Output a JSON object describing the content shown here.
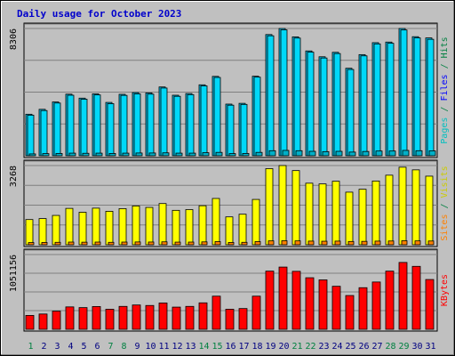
{
  "title": "Daily usage for October 2023",
  "colors": {
    "background": "#c0c0c0",
    "plot_background": "#c0c0c0",
    "title": "#0000cc",
    "grid": "#808080",
    "hits": "#00bfe8",
    "files": "#00d8f8",
    "pages": "#00b0c8",
    "visits": "#ffff00",
    "sites": "#ff8000",
    "kbytes": "#ff0000",
    "weekend_label": "#008040",
    "weekday_label": "#000080",
    "label_hits": "#008040",
    "label_files": "#0000ff",
    "label_pages": "#00bfbf",
    "label_visits": "#cccc00",
    "label_sites": "#ff8000",
    "label_kbytes": "#ff0000",
    "separator": "#000000"
  },
  "chart_data": [
    {
      "type": "bar",
      "title": "Daily usage for October 2023",
      "panel": "hits-files-pages",
      "ymax_label": "8306",
      "ylim": [
        0,
        8306
      ],
      "grid": true,
      "categories": [
        "1",
        "2",
        "3",
        "4",
        "5",
        "6",
        "7",
        "8",
        "9",
        "10",
        "11",
        "12",
        "13",
        "14",
        "15",
        "16",
        "17",
        "18",
        "19",
        "20",
        "21",
        "22",
        "23",
        "24",
        "25",
        "26",
        "27",
        "28",
        "29",
        "30",
        "31"
      ],
      "weekend_days": [
        "1",
        "7",
        "8",
        "14",
        "15",
        "21",
        "22",
        "28",
        "29"
      ],
      "side_label_parts": [
        {
          "text": "Pages",
          "color_key": "label_pages"
        },
        {
          "text": " / ",
          "color_key": "label_hits"
        },
        {
          "text": "Files",
          "color_key": "label_files"
        },
        {
          "text": " / ",
          "color_key": "label_hits"
        },
        {
          "text": "Hits",
          "color_key": "label_hits"
        }
      ],
      "series": [
        {
          "name": "Hits",
          "color_key": "hits",
          "values": [
            2710,
            3030,
            3510,
            4020,
            3760,
            4040,
            3480,
            4010,
            4120,
            4100,
            4490,
            3950,
            4060,
            4630,
            5180,
            3370,
            3420,
            5190,
            7910,
            8306,
            7760,
            6840,
            6460,
            6750,
            5710,
            6600,
            7380,
            7420,
            8306,
            7770,
            7690
          ]
        },
        {
          "name": "Files",
          "color_key": "files",
          "values": [
            2650,
            2950,
            3440,
            3950,
            3690,
            3970,
            3400,
            3940,
            4040,
            4020,
            4420,
            3880,
            3990,
            4560,
            5110,
            3300,
            3350,
            5130,
            7830,
            8220,
            7680,
            6760,
            6380,
            6670,
            5630,
            6520,
            7300,
            7340,
            8210,
            7690,
            7600
          ]
        },
        {
          "name": "Pages",
          "color_key": "pages",
          "values": [
            120,
            140,
            150,
            170,
            160,
            170,
            150,
            170,
            180,
            180,
            190,
            170,
            170,
            200,
            220,
            140,
            150,
            220,
            330,
            350,
            330,
            290,
            270,
            290,
            240,
            280,
            310,
            310,
            350,
            330,
            320
          ]
        }
      ]
    },
    {
      "type": "bar",
      "panel": "visits-sites",
      "ymax_label": "3268",
      "ylim": [
        0,
        3268
      ],
      "grid": true,
      "categories": [
        "1",
        "2",
        "3",
        "4",
        "5",
        "6",
        "7",
        "8",
        "9",
        "10",
        "11",
        "12",
        "13",
        "14",
        "15",
        "16",
        "17",
        "18",
        "19",
        "20",
        "21",
        "22",
        "23",
        "24",
        "25",
        "26",
        "27",
        "28",
        "29",
        "30",
        "31"
      ],
      "side_label_parts": [
        {
          "text": "Sites",
          "color_key": "label_sites"
        },
        {
          "text": " / ",
          "color_key": "label_hits"
        },
        {
          "text": "Visits",
          "color_key": "label_visits"
        }
      ],
      "series": [
        {
          "name": "Visits",
          "color_key": "visits",
          "values": [
            1040,
            1080,
            1210,
            1500,
            1340,
            1510,
            1380,
            1490,
            1600,
            1540,
            1700,
            1420,
            1450,
            1610,
            1910,
            1150,
            1260,
            1870,
            3140,
            3268,
            3060,
            2540,
            2510,
            2620,
            2170,
            2290,
            2630,
            2870,
            3200,
            3090,
            2830
          ]
        },
        {
          "name": "Sites",
          "color_key": "sites",
          "values": [
            90,
            95,
            100,
            110,
            105,
            110,
            100,
            110,
            115,
            112,
            120,
            108,
            110,
            118,
            130,
            95,
            100,
            130,
            160,
            165,
            160,
            150,
            145,
            150,
            135,
            140,
            150,
            155,
            165,
            160,
            155
          ]
        }
      ]
    },
    {
      "type": "bar",
      "panel": "kbytes",
      "ymax_label": "1051156",
      "ylim": [
        0,
        1051156
      ],
      "grid": true,
      "categories": [
        "1",
        "2",
        "3",
        "4",
        "5",
        "6",
        "7",
        "8",
        "9",
        "10",
        "11",
        "12",
        "13",
        "14",
        "15",
        "16",
        "17",
        "18",
        "19",
        "20",
        "21",
        "22",
        "23",
        "24",
        "25",
        "26",
        "27",
        "28",
        "29",
        "30",
        "31"
      ],
      "side_label_parts": [
        {
          "text": "KBytes",
          "color_key": "label_kbytes"
        }
      ],
      "series": [
        {
          "name": "KBytes",
          "color_key": "kbytes",
          "values": [
            195000,
            215000,
            255000,
            315000,
            305000,
            320000,
            282000,
            322000,
            342000,
            335000,
            370000,
            312000,
            322000,
            372000,
            466000,
            282000,
            292000,
            466000,
            818000,
            875000,
            815000,
            725000,
            695000,
            605000,
            475000,
            585000,
            665000,
            818000,
            940000,
            885000,
            700000
          ]
        }
      ]
    }
  ]
}
